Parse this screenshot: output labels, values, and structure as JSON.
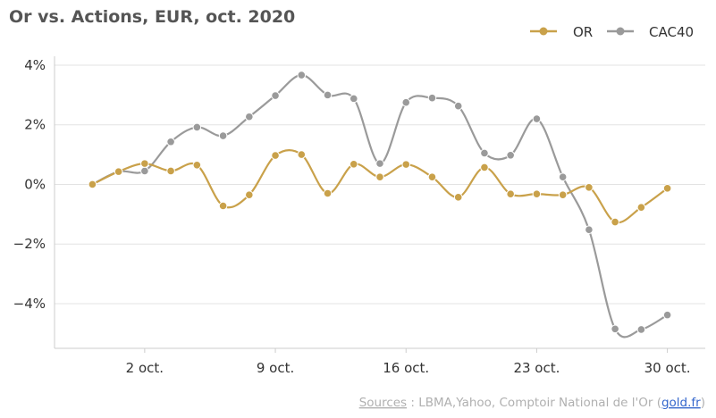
{
  "chart_data": {
    "type": "line",
    "title": "Or vs. Actions, EUR, oct. 2020",
    "xlabel": "",
    "ylabel": "",
    "x": [
      0,
      1,
      2,
      3,
      4,
      5,
      6,
      7,
      8,
      9,
      10,
      11,
      12,
      13,
      14,
      15,
      16,
      17,
      18,
      19,
      20,
      21,
      22
    ],
    "x_ticks": [
      {
        "x": 2,
        "label": "2 oct."
      },
      {
        "x": 7,
        "label": "9 oct."
      },
      {
        "x": 12,
        "label": "16 oct."
      },
      {
        "x": 17,
        "label": "23 oct."
      },
      {
        "x": 22,
        "label": "30 oct."
      }
    ],
    "xlim": [
      -1.45,
      23.45
    ],
    "ylim": [
      -5.5,
      4.3
    ],
    "y_ticks": [
      {
        "value": 4,
        "label": "4%"
      },
      {
        "value": 2,
        "label": "2%"
      },
      {
        "value": 0,
        "label": "0%"
      },
      {
        "value": -2,
        "label": "−2%"
      },
      {
        "value": -4,
        "label": "−4%"
      }
    ],
    "grid": true,
    "legend_position": "top-right",
    "series": [
      {
        "name": "OR",
        "color": "#c9a14a",
        "values": [
          0.0,
          0.43,
          0.7,
          0.45,
          0.65,
          -0.72,
          -0.35,
          0.97,
          1.0,
          -0.3,
          0.68,
          0.25,
          0.67,
          0.25,
          -0.43,
          0.57,
          -0.32,
          -0.32,
          -0.35,
          -0.1,
          -1.26,
          -0.77,
          -0.13
        ]
      },
      {
        "name": "CAC40",
        "color": "#9a9a9a",
        "values": [
          0.0,
          0.43,
          0.45,
          1.43,
          1.92,
          1.63,
          2.27,
          2.98,
          3.67,
          3.0,
          2.88,
          0.7,
          2.75,
          2.9,
          2.63,
          1.05,
          0.98,
          2.2,
          0.25,
          -1.52,
          -4.85,
          -4.87,
          -4.38
        ]
      }
    ]
  },
  "source": {
    "prefix": "Sources",
    "separator": " : ",
    "body": "LBMA,Yahoo, Comptoir National de l'Or (",
    "link": "gold.fr",
    "suffix": ")"
  }
}
